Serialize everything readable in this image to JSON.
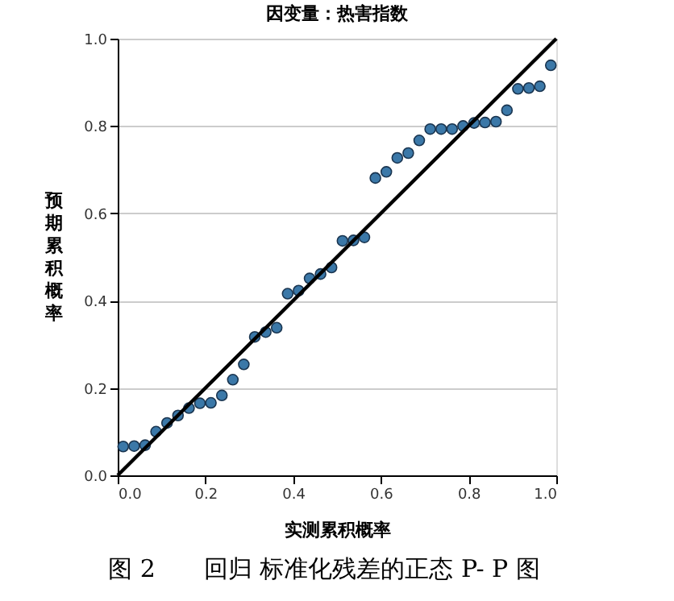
{
  "chart_data": {
    "type": "scatter",
    "title": "因变量：热害指数",
    "xlabel": "实测累积概率",
    "ylabel": "预期累积概率",
    "annotations": [
      "图 2　　回归 标准化残差的正态 P- P 图"
    ],
    "xlim": [
      0,
      1
    ],
    "ylim": [
      0,
      1
    ],
    "xticks": [
      {
        "value": 0,
        "label": "0.0"
      },
      0.2,
      0.4,
      0.6,
      0.8,
      {
        "value": 1,
        "label": "1.0"
      }
    ],
    "yticks": [
      {
        "value": 0,
        "label": "0.0"
      },
      0.2,
      0.4,
      0.6,
      0.8,
      {
        "value": 1,
        "label": "1.0"
      }
    ],
    "grid": "y",
    "series": [
      {
        "marker": "circle",
        "color": "#3b78a8",
        "x": [
          0.0125,
          0.0375,
          0.0625,
          0.0875,
          0.1125,
          0.1375,
          0.1625,
          0.1875,
          0.2125,
          0.2375,
          0.2625,
          0.2875,
          0.3125,
          0.3375,
          0.3625,
          0.3875,
          0.4125,
          0.4375,
          0.4625,
          0.4875,
          0.5125,
          0.5375,
          0.5625,
          0.5875,
          0.6125,
          0.6375,
          0.6625,
          0.6875,
          0.7125,
          0.7375,
          0.7625,
          0.7875,
          0.8125,
          0.8375,
          0.8625,
          0.8875,
          0.9125,
          0.9375,
          0.9625,
          0.9875
        ],
        "values": [
          0.066,
          0.067,
          0.069,
          0.1,
          0.12,
          0.137,
          0.154,
          0.165,
          0.166,
          0.183,
          0.219,
          0.254,
          0.317,
          0.328,
          0.338,
          0.416,
          0.423,
          0.451,
          0.461,
          0.476,
          0.537,
          0.538,
          0.545,
          0.681,
          0.695,
          0.727,
          0.738,
          0.767,
          0.793,
          0.793,
          0.793,
          0.8,
          0.807,
          0.808,
          0.81,
          0.836,
          0.885,
          0.887,
          0.891,
          0.939
        ]
      },
      {
        "type": "line",
        "color": "#000000",
        "line_style": "solid",
        "x": [
          0,
          1
        ],
        "values": [
          0,
          1
        ]
      }
    ]
  }
}
